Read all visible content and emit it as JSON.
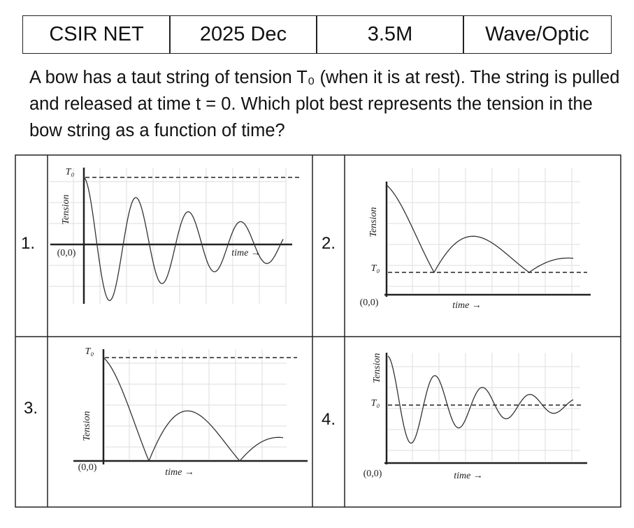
{
  "header": {
    "cells": [
      "CSIR NET",
      "2025 Dec",
      "3.5M",
      "Wave/Optic"
    ]
  },
  "question": "A bow has a taut string of tension T₀ (when it is at rest). The string is pulled and released at time t = 0. Which plot best represents the tension in the bow string as a function of time?",
  "options": [
    {
      "number": "1.",
      "t0": "T₀",
      "ylabel": "Tension",
      "origin": "(0,0)",
      "xlabel": "time →"
    },
    {
      "number": "2.",
      "t0": "T₀",
      "ylabel": "Tension",
      "origin": "(0,0)",
      "xlabel": "time →"
    },
    {
      "number": "3.",
      "t0": "T₀",
      "ylabel": "Tension",
      "origin": "(0,0)",
      "xlabel": "time →"
    },
    {
      "number": "4.",
      "t0": "T₀",
      "ylabel": "Tension",
      "origin": "(0,0)",
      "xlabel": "time →"
    }
  ]
}
